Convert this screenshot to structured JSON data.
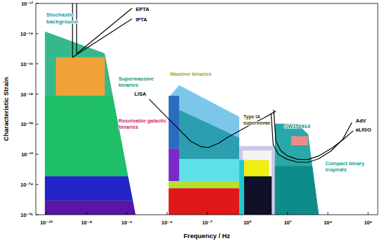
{
  "chart_data": {
    "type": "line",
    "x_label": "Frequency / Hz",
    "y_label": "Characteristic Strain",
    "log": true,
    "grid": false,
    "xlim": [
      3e-11,
      3000000.0
    ],
    "ylim": [
      1e-26,
      1e-12
    ],
    "xticks": [
      {
        "value": 1e-10,
        "label": "10⁻¹⁰"
      },
      {
        "value": 1e-08,
        "label": "10⁻⁸"
      },
      {
        "value": 1e-06,
        "label": "10⁻⁶"
      },
      {
        "value": 0.0001,
        "label": "10⁻⁴"
      },
      {
        "value": 0.01,
        "label": "10⁻²"
      },
      {
        "value": 1,
        "label": "10⁰"
      },
      {
        "value": 100,
        "label": "10²"
      },
      {
        "value": 10000,
        "label": "10⁴"
      },
      {
        "value": 1000000,
        "label": "10⁶"
      }
    ],
    "yticks": [
      {
        "value": 1e-12,
        "label": "10⁻¹²"
      },
      {
        "value": 1e-14,
        "label": "10⁻¹⁴"
      },
      {
        "value": 1e-16,
        "label": "10⁻¹⁶"
      },
      {
        "value": 1e-18,
        "label": "10⁻¹⁸"
      },
      {
        "value": 1e-20,
        "label": "10⁻²⁰"
      },
      {
        "value": 1e-22,
        "label": "10⁻²²"
      },
      {
        "value": 1e-24,
        "label": "10⁻²⁴"
      },
      {
        "value": 1e-26,
        "label": "10⁻²⁶"
      }
    ],
    "series": [
      {
        "name": "Stochastic\nbackground",
        "type": "area",
        "color": "#36b98a",
        "x": [
          8.5e-11,
          8.5e-11,
          8e-08,
          2.7e-06
        ],
        "values": [
          1e-26,
          1.4e-14,
          5e-16,
          1e-26
        ]
      },
      {
        "type": "area",
        "color": "#1fbf6a",
        "x": [
          8.5e-11,
          1.95e-07,
          1.15e-06,
          8.5e-11
        ],
        "values": [
          7.6e-19,
          7.6e-19,
          3.5e-24,
          3.5e-24
        ]
      },
      {
        "type": "area",
        "color": "#2424c8",
        "x": [
          8.5e-11,
          1.15e-06,
          2e-06,
          8.5e-11
        ],
        "values": [
          3.5e-24,
          3.5e-24,
          8.5e-26,
          8.5e-26
        ]
      },
      {
        "type": "area",
        "color": "#5a14a8",
        "x": [
          8.5e-11,
          2e-06,
          2.7e-06,
          8.5e-11
        ],
        "values": [
          8.5e-26,
          8.5e-26,
          1e-26,
          1e-26
        ]
      },
      {
        "name": "Supermassive\nbinaries",
        "type": "area",
        "color": "#f0a238",
        "x": [
          3e-10,
          8e-08,
          8e-08,
          3e-10
        ],
        "values": [
          2.7e-16,
          2.7e-16,
          7.6e-19,
          7.6e-19
        ]
      },
      {
        "name": "Massive binaries",
        "type": "area",
        "color": "#7cc6ea",
        "x": [
          0.00014,
          0.0004,
          0.39,
          0.39,
          0.00014
        ],
        "values": [
          7.6e-19,
          3.8e-18,
          3.1e-20,
          1.7e-24,
          1.7e-24
        ]
      },
      {
        "type": "area",
        "color": "#2b9fb0",
        "x": [
          0.0004,
          0.39,
          0.39,
          0.0004
        ],
        "values": [
          9e-20,
          1.26e-21,
          5e-23,
          5e-23
        ]
      },
      {
        "type": "area",
        "color": "#5ee0e8",
        "x": [
          0.0004,
          0.39,
          0.39,
          0.0004
        ],
        "values": [
          5e-23,
          5e-23,
          1.7e-24,
          1.7e-24
        ]
      },
      {
        "name": "Resolvable galactic\nbinaries",
        "type": "area",
        "color": "#2a6cc0",
        "x": [
          0.00012,
          0.0004,
          0.0004,
          0.00012
        ],
        "values": [
          7.6e-19,
          7.6e-19,
          2.5e-22,
          2.5e-22
        ]
      },
      {
        "type": "area",
        "color": "#7a28c8",
        "x": [
          0.00012,
          0.0004,
          0.0004,
          0.00012
        ],
        "values": [
          2.5e-22,
          2.5e-22,
          1.7e-24,
          1.7e-24
        ]
      },
      {
        "type": "area",
        "color": "#b8e030",
        "x": [
          0.00012,
          0.39,
          0.39,
          0.00012
        ],
        "values": [
          1.7e-24,
          1.7e-24,
          5.7e-25,
          5.7e-25
        ]
      },
      {
        "type": "area",
        "color": "#e01818",
        "x": [
          0.00012,
          0.39,
          0.39,
          0.00012
        ],
        "values": [
          5.7e-25,
          5.7e-25,
          1e-26,
          1e-26
        ]
      },
      {
        "name": "Type IA\nsupernovae",
        "type": "area",
        "color": "#c8c8e8",
        "x": [
          0.39,
          23,
          23,
          0.39
        ],
        "values": [
          3.5e-22,
          3.5e-22,
          1e-26,
          1e-26
        ]
      },
      {
        "type": "area",
        "color": "#f4f4f4",
        "x": [
          0.58,
          16,
          16,
          0.58
        ],
        "values": [
          1.8e-22,
          1.8e-22,
          2.9e-26,
          2.9e-26
        ]
      },
      {
        "type": "area",
        "color": "#20c8d0",
        "x": [
          0.39,
          0.68,
          0.68,
          0.39
        ],
        "values": [
          4.2e-23,
          4.2e-23,
          1e-26,
          1e-26
        ]
      },
      {
        "type": "area",
        "color": "#f0ee10",
        "x": [
          0.68,
          11.7,
          11.7,
          0.68
        ],
        "values": [
          4.2e-23,
          4.2e-23,
          1.7e-24,
          1.7e-24
        ]
      },
      {
        "type": "area",
        "color": "#101028",
        "x": [
          0.68,
          16,
          16,
          0.68
        ],
        "values": [
          3.5e-24,
          3.5e-24,
          1e-26,
          1e-26
        ]
      },
      {
        "name": "Compact binary\ninspirals",
        "type": "area",
        "color": "#2aa8a8",
        "x": [
          23,
          23,
          300,
          1050,
          3500
        ],
        "values": [
          1e-26,
          1.07e-20,
          1.07e-20,
          2.1e-21,
          1e-26
        ]
      },
      {
        "type": "area",
        "color": "#0e8c8c",
        "x": [
          23,
          1660,
          3500,
          23
        ],
        "values": [
          1.7e-23,
          1.7e-23,
          1e-26,
          1e-26
        ]
      },
      {
        "name": "GW150914",
        "type": "area",
        "color": "#f08a8a",
        "x": [
          150,
          1000,
          1000,
          150
        ],
        "values": [
          1.6e-21,
          1.6e-21,
          4e-22,
          4e-22
        ]
      },
      {
        "name": "EPTA",
        "type": "line",
        "color": "#000000",
        "x": [
          3.2e-09,
          3.2e-09,
          1.8e-06
        ],
        "values": [
          1e-12,
          4.6e-16,
          4.8e-13
        ]
      },
      {
        "name": "IPTA",
        "type": "line",
        "color": "#000000",
        "x": [
          2e-09,
          2e-09,
          1.8e-06
        ],
        "values": [
          1e-12,
          2.7e-16,
          9.5e-14
        ]
      },
      {
        "name": "LISA",
        "type": "line",
        "color": "#000000",
        "x": [
          1.3e-05,
          4.3e-05,
          0.00014,
          0.00046,
          0.0015,
          0.005,
          0.011,
          0.036,
          0.12,
          0.39,
          1.26,
          6.2,
          26
        ],
        "values": [
          4.5e-19,
          8.9e-20,
          1.8e-20,
          3.7e-21,
          7.4e-22,
          3.2e-22,
          2.8e-22,
          5.4e-22,
          1.5e-21,
          3.6e-21,
          8.5e-21,
          2.5e-20,
          7.2e-20
        ]
      },
      {
        "name": "AdV",
        "type": "line",
        "color": "#000000",
        "x": [
          15,
          19,
          35,
          98,
          320,
          1050,
          3450,
          14500,
          55000,
          155000
        ],
        "values": [
          5.2e-20,
          4.4e-22,
          9.8e-23,
          4.6e-23,
          3e-23,
          3e-23,
          5.1e-23,
          1.7e-22,
          1e-21,
          1.3e-20
        ]
      },
      {
        "name": "aLIGO",
        "type": "line",
        "color": "#000000",
        "x": [
          20,
          26,
          45,
          98,
          320,
          1050,
          3450,
          17000,
          55000,
          180000
        ],
        "values": [
          9e-20,
          7.4e-22,
          1.8e-22,
          7.8e-23,
          4.6e-23,
          4.6e-23,
          7.8e-23,
          2.8e-22,
          9.1e-22,
          3.6e-21
        ]
      }
    ]
  }
}
